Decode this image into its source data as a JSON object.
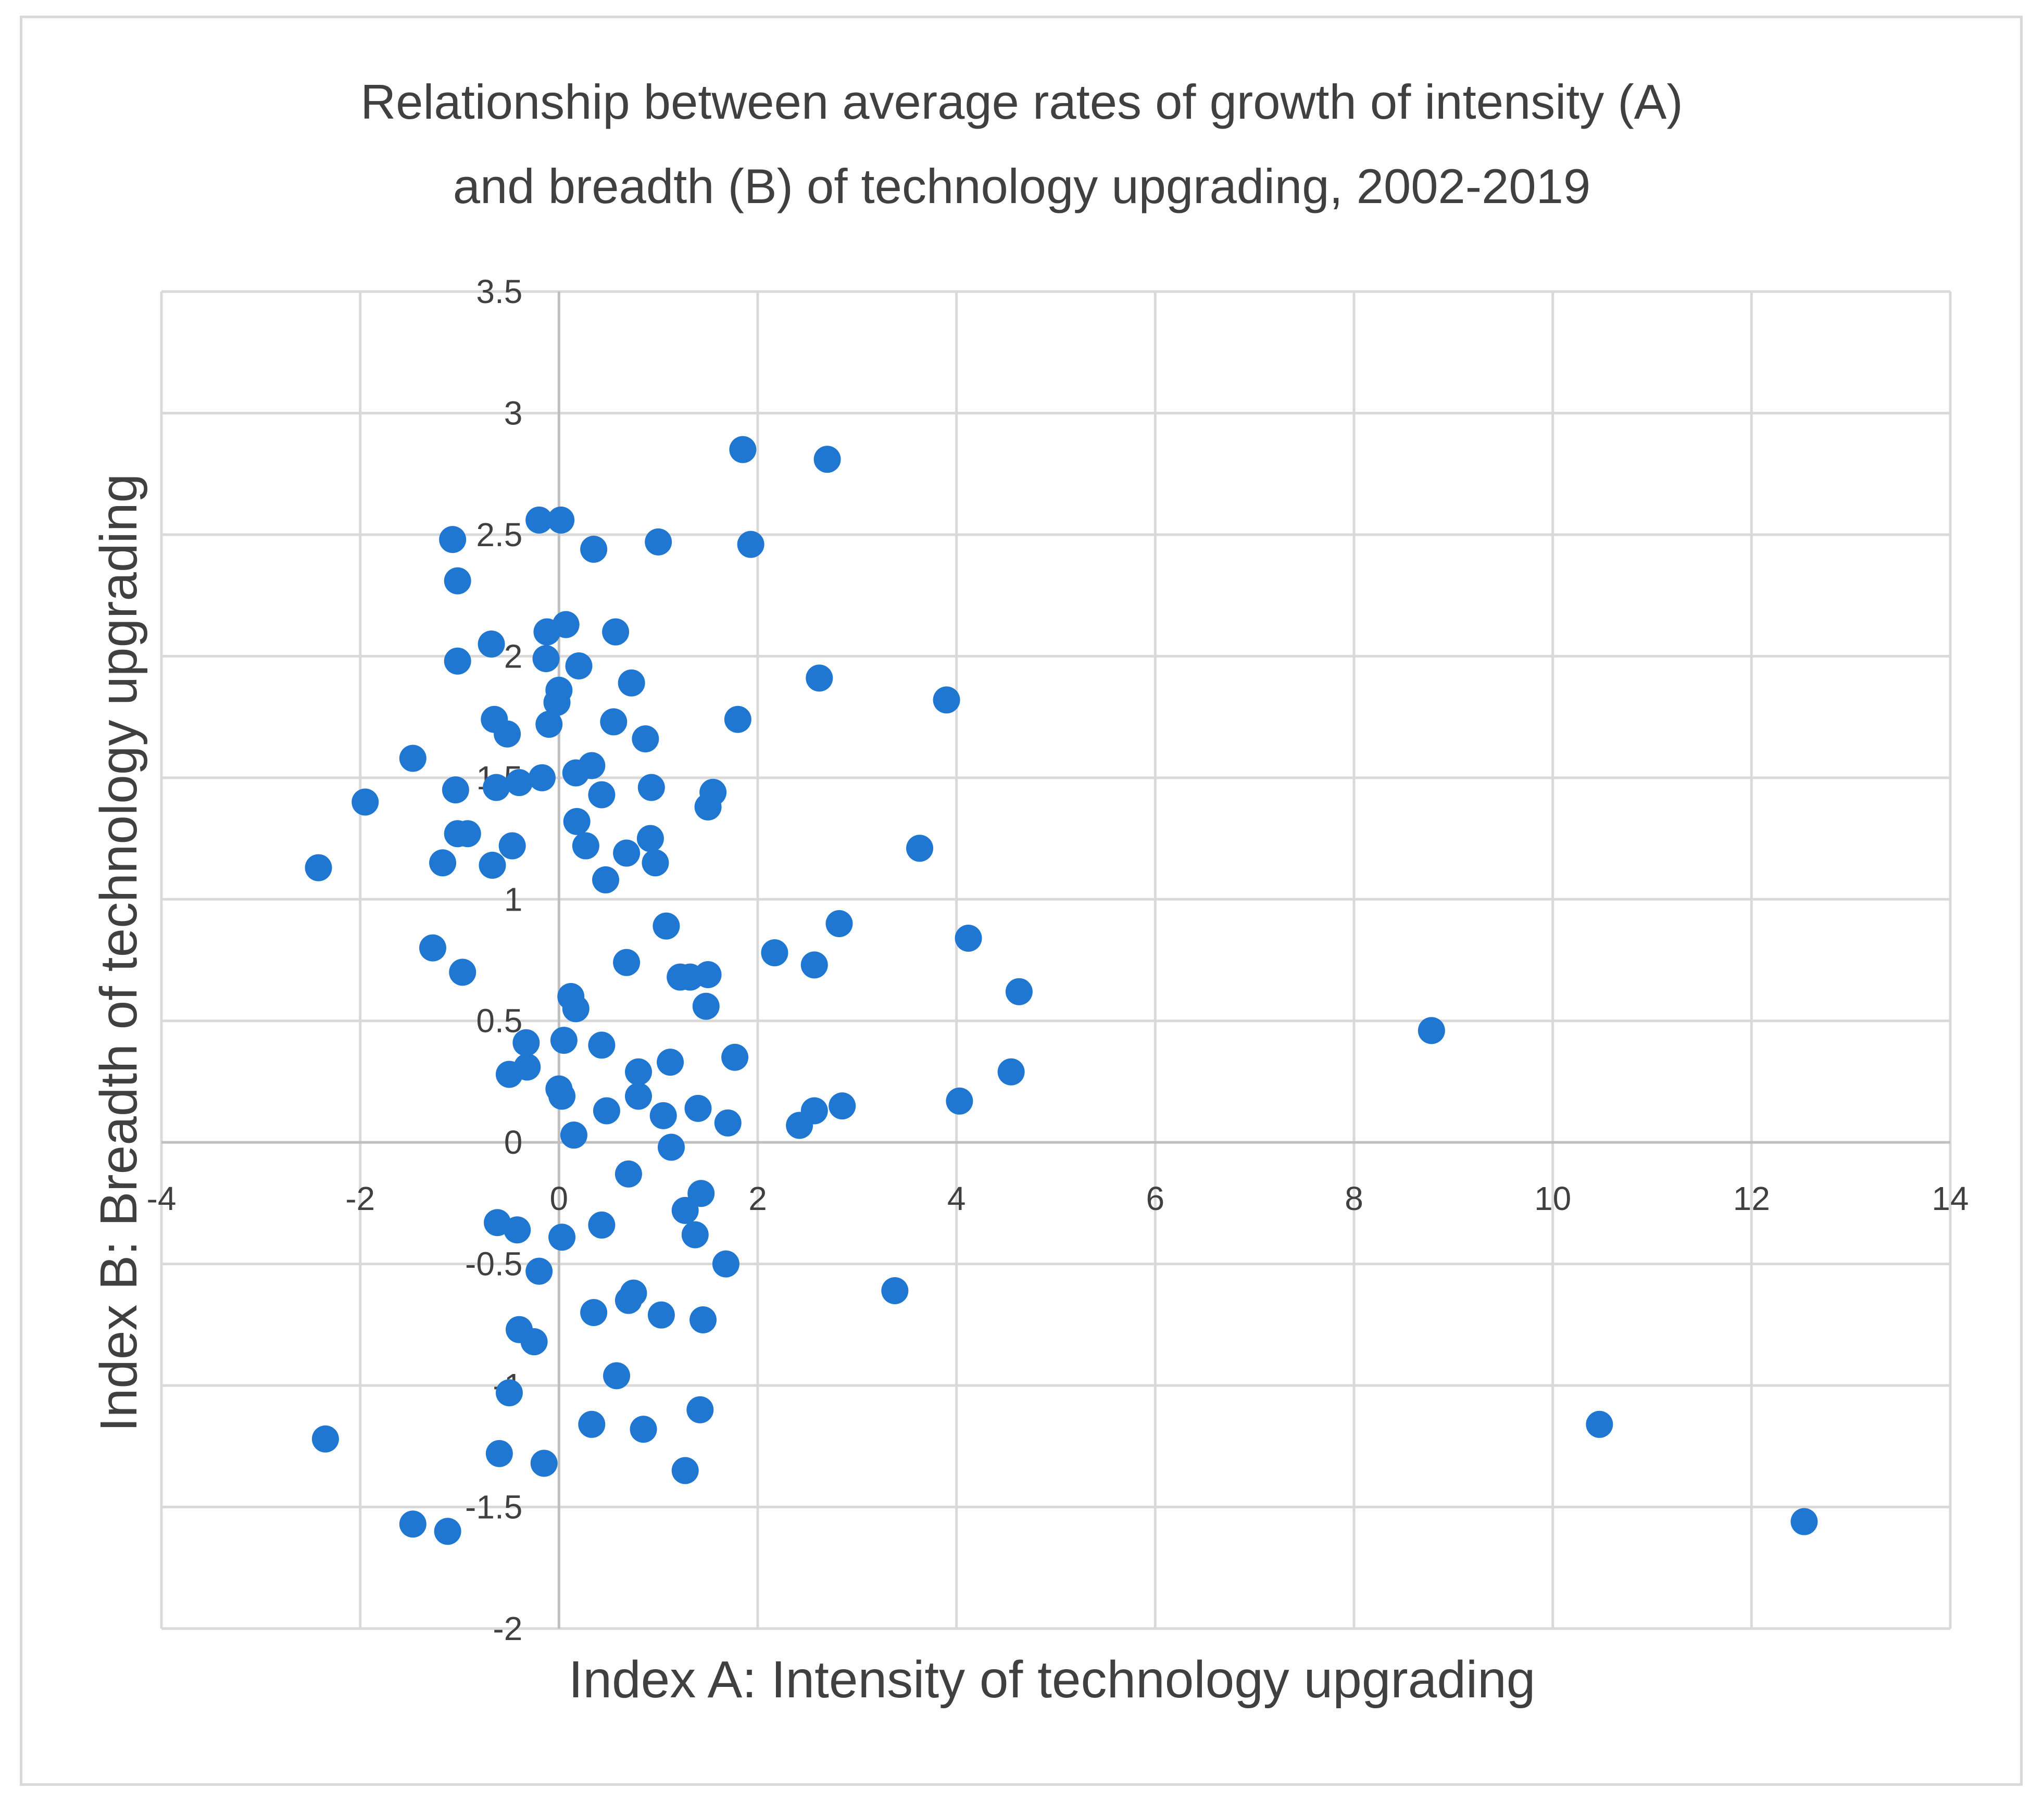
{
  "chart_data": {
    "type": "scatter",
    "title_lines": [
      "Relationship between average rates of growth of intensity (A)",
      "and breadth (B) of technology upgrading, 2002-2019"
    ],
    "xlabel": "Index A: Intensity of technology upgrading",
    "ylabel": "Index B: Breadth of technology upgrading",
    "xlim": [
      -4,
      14
    ],
    "ylim": [
      -2,
      3.5
    ],
    "xticks": [
      -4,
      -2,
      0,
      2,
      4,
      6,
      8,
      10,
      12,
      14
    ],
    "yticks": [
      -2,
      -1.5,
      -1,
      -0.5,
      0,
      0.5,
      1,
      1.5,
      2,
      2.5,
      3,
      3.5
    ],
    "xtick_labels": [
      "-4",
      "-2",
      "0",
      "2",
      "4",
      "6",
      "8",
      "10",
      "12",
      "14"
    ],
    "ytick_labels": [
      "-2",
      "-1.5",
      "-1",
      "-0.5",
      "0",
      "0.5",
      "1",
      "1.5",
      "2",
      "2.5",
      "3",
      "3.5"
    ],
    "grid": true,
    "marker_color": "#1f77d1",
    "points": [
      [
        1.85,
        2.85
      ],
      [
        2.7,
        2.81
      ],
      [
        -0.2,
        2.56
      ],
      [
        0.02,
        2.56
      ],
      [
        -1.07,
        2.48
      ],
      [
        1.0,
        2.47
      ],
      [
        1.93,
        2.46
      ],
      [
        0.35,
        2.44
      ],
      [
        -1.02,
        2.31
      ],
      [
        0.07,
        2.13
      ],
      [
        -0.12,
        2.1
      ],
      [
        0.57,
        2.1
      ],
      [
        -0.68,
        2.05
      ],
      [
        -0.13,
        1.99
      ],
      [
        -1.02,
        1.98
      ],
      [
        0.2,
        1.96
      ],
      [
        2.62,
        1.91
      ],
      [
        0.73,
        1.89
      ],
      [
        0.0,
        1.86
      ],
      [
        -0.02,
        1.81
      ],
      [
        3.9,
        1.82
      ],
      [
        -0.65,
        1.74
      ],
      [
        0.55,
        1.73
      ],
      [
        1.8,
        1.74
      ],
      [
        -0.1,
        1.72
      ],
      [
        -0.52,
        1.68
      ],
      [
        0.87,
        1.66
      ],
      [
        -1.47,
        1.58
      ],
      [
        0.33,
        1.55
      ],
      [
        0.17,
        1.52
      ],
      [
        -0.17,
        1.5
      ],
      [
        -0.4,
        1.48
      ],
      [
        -0.63,
        1.46
      ],
      [
        -1.04,
        1.45
      ],
      [
        0.93,
        1.46
      ],
      [
        1.55,
        1.44
      ],
      [
        0.43,
        1.43
      ],
      [
        -1.95,
        1.4
      ],
      [
        1.5,
        1.38
      ],
      [
        0.18,
        1.32
      ],
      [
        -1.02,
        1.27
      ],
      [
        -0.92,
        1.27
      ],
      [
        0.92,
        1.25
      ],
      [
        0.27,
        1.22
      ],
      [
        -0.47,
        1.22
      ],
      [
        3.63,
        1.21
      ],
      [
        0.68,
        1.19
      ],
      [
        -1.17,
        1.15
      ],
      [
        0.97,
        1.15
      ],
      [
        -0.67,
        1.14
      ],
      [
        -2.42,
        1.13
      ],
      [
        0.47,
        1.08
      ],
      [
        1.08,
        0.89
      ],
      [
        2.82,
        0.9
      ],
      [
        4.12,
        0.84
      ],
      [
        -1.27,
        0.8
      ],
      [
        2.17,
        0.78
      ],
      [
        0.68,
        0.74
      ],
      [
        2.57,
        0.73
      ],
      [
        -0.97,
        0.7
      ],
      [
        1.22,
        0.68
      ],
      [
        1.32,
        0.68
      ],
      [
        1.5,
        0.69
      ],
      [
        4.63,
        0.62
      ],
      [
        0.12,
        0.6
      ],
      [
        0.17,
        0.55
      ],
      [
        1.48,
        0.56
      ],
      [
        8.78,
        0.46
      ],
      [
        -0.33,
        0.41
      ],
      [
        0.05,
        0.42
      ],
      [
        0.43,
        0.4
      ],
      [
        1.77,
        0.35
      ],
      [
        -0.32,
        0.31
      ],
      [
        1.12,
        0.33
      ],
      [
        0.8,
        0.29
      ],
      [
        -0.5,
        0.28
      ],
      [
        4.55,
        0.29
      ],
      [
        0.0,
        0.22
      ],
      [
        0.03,
        0.19
      ],
      [
        0.8,
        0.19
      ],
      [
        4.03,
        0.17
      ],
      [
        2.85,
        0.15
      ],
      [
        0.48,
        0.13
      ],
      [
        1.4,
        0.14
      ],
      [
        2.57,
        0.13
      ],
      [
        1.05,
        0.11
      ],
      [
        1.7,
        0.08
      ],
      [
        2.42,
        0.07
      ],
      [
        0.15,
        0.03
      ],
      [
        1.13,
        -0.02
      ],
      [
        0.7,
        -0.13
      ],
      [
        1.43,
        -0.21
      ],
      [
        1.27,
        -0.28
      ],
      [
        -0.62,
        -0.33
      ],
      [
        -0.42,
        -0.36
      ],
      [
        0.43,
        -0.34
      ],
      [
        1.37,
        -0.38
      ],
      [
        0.03,
        -0.39
      ],
      [
        1.68,
        -0.5
      ],
      [
        -0.2,
        -0.53
      ],
      [
        3.38,
        -0.61
      ],
      [
        0.75,
        -0.62
      ],
      [
        0.7,
        -0.65
      ],
      [
        0.35,
        -0.7
      ],
      [
        1.03,
        -0.71
      ],
      [
        1.45,
        -0.73
      ],
      [
        -0.4,
        -0.77
      ],
      [
        -0.25,
        -0.82
      ],
      [
        0.58,
        -0.96
      ],
      [
        -0.5,
        -1.03
      ],
      [
        1.42,
        -1.1
      ],
      [
        10.47,
        -1.16
      ],
      [
        0.33,
        -1.16
      ],
      [
        0.85,
        -1.18
      ],
      [
        -2.35,
        -1.22
      ],
      [
        -0.6,
        -1.28
      ],
      [
        -0.15,
        -1.32
      ],
      [
        1.27,
        -1.35
      ],
      [
        -1.47,
        -1.57
      ],
      [
        -1.12,
        -1.6
      ],
      [
        12.53,
        -1.56
      ]
    ]
  }
}
